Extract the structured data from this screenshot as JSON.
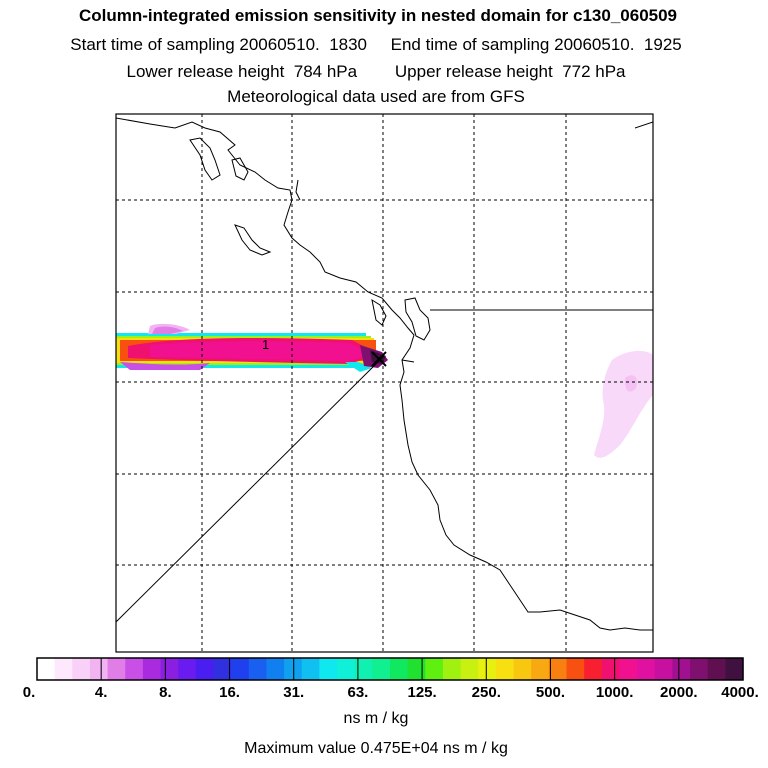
{
  "header": {
    "title": "Column-integrated emission sensitivity in nested domain for c130_060509",
    "start_label": "Start time of sampling 20060510.  1830",
    "end_label": "End time of sampling 20060510.  1925",
    "lower_label": "Lower release height  784 hPa",
    "upper_label": "Upper release height  772 hPa",
    "met_label": "Meteorological data used are from GFS"
  },
  "map": {
    "plume_label": "1"
  },
  "legend": {
    "ticks": [
      "0.",
      "4.",
      "8.",
      "16.",
      "31.",
      "63.",
      "125.",
      "250.",
      "500.",
      "1000.",
      "2000.",
      "4000."
    ],
    "colors": [
      "#ffffff",
      "#fde8fd",
      "#f8d0f8",
      "#f1b3f1",
      "#e07de7",
      "#c850e6",
      "#a92bdf",
      "#8a1fe0",
      "#6a1bf0",
      "#4a1df0",
      "#3030e0",
      "#2040f0",
      "#1a60f0",
      "#1080f0",
      "#10a0f0",
      "#10c0f0",
      "#10e8f0",
      "#10f0d8",
      "#10f0b0",
      "#10f090",
      "#10e860",
      "#20e030",
      "#60f010",
      "#a0f010",
      "#c8f010",
      "#e8f010",
      "#f8e010",
      "#f8c810",
      "#f8a810",
      "#f88010",
      "#f85010",
      "#f82030",
      "#f01070",
      "#f01090",
      "#e010a0",
      "#c810a0",
      "#a01090",
      "#801070",
      "#601050",
      "#401040"
    ],
    "units": "ns m / kg",
    "max_value": "Maximum value  0.475E+04 ns m / kg"
  }
}
